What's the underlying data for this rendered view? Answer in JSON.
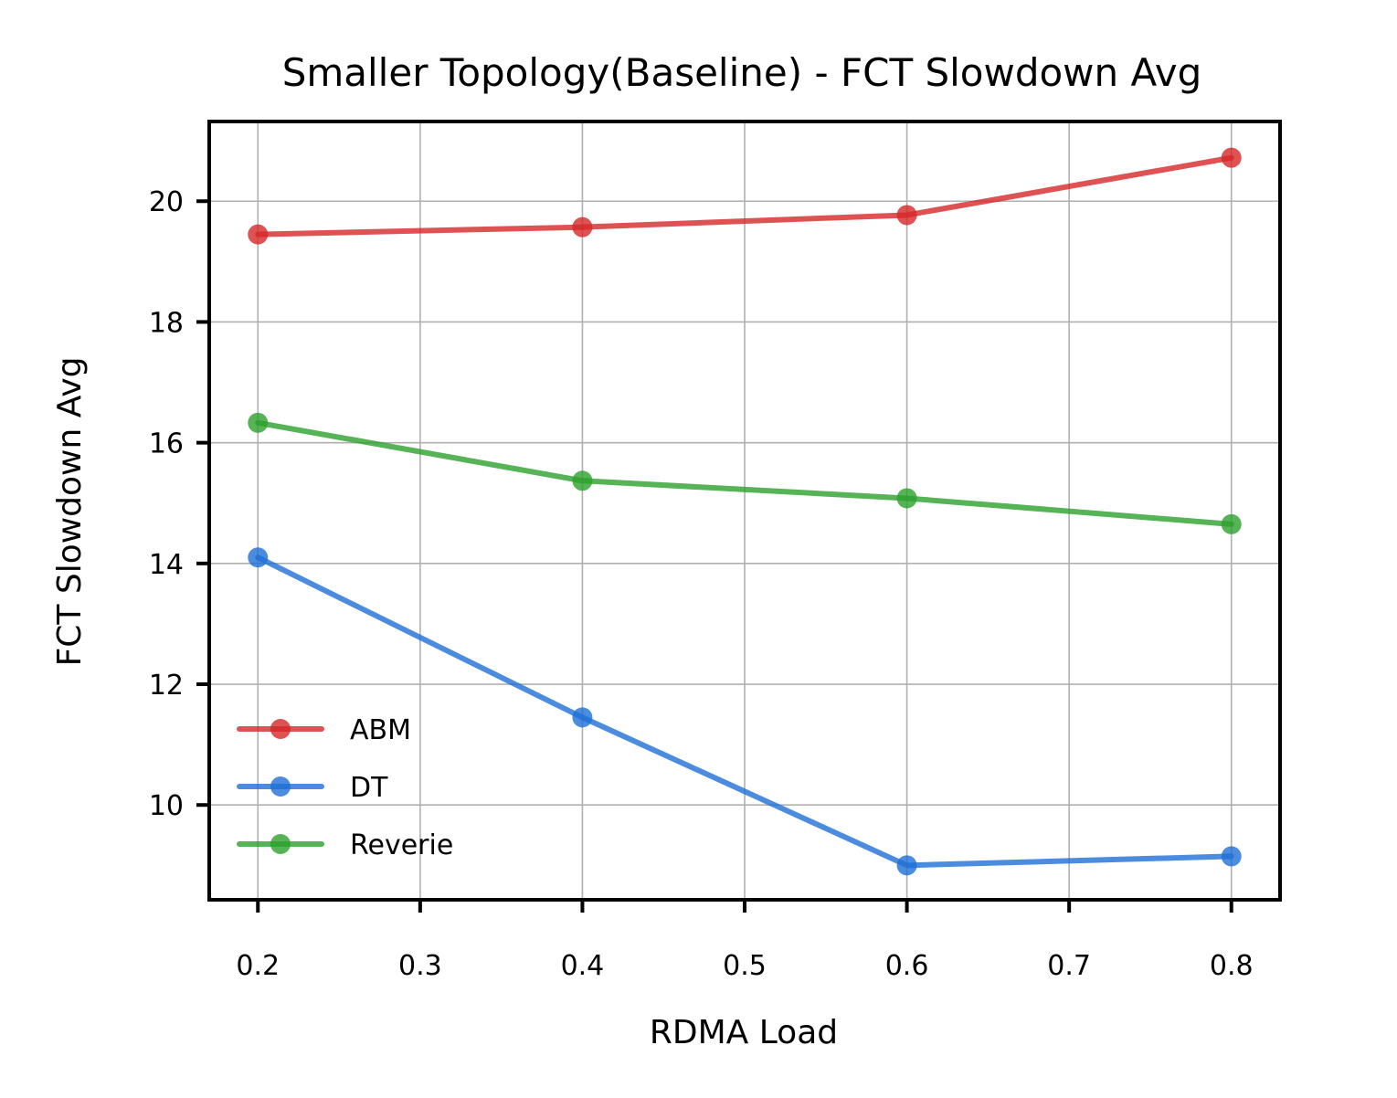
{
  "chart_data": {
    "type": "line",
    "title": "Smaller Topology(Baseline) - FCT Slowdown Avg",
    "xlabel": "RDMA Load",
    "ylabel": "FCT Slowdown Avg",
    "x": [
      0.2,
      0.4,
      0.6,
      0.8
    ],
    "xlim": [
      0.17,
      0.83
    ],
    "ylim": [
      8.43,
      21.32
    ],
    "xticks": [
      0.2,
      0.3,
      0.4,
      0.5,
      0.6,
      0.7,
      0.8
    ],
    "xtick_labels": [
      "0.2",
      "0.3",
      "0.4",
      "0.5",
      "0.6",
      "0.7",
      "0.8"
    ],
    "yticks": [
      10,
      12,
      14,
      16,
      18,
      20
    ],
    "ytick_labels": [
      "10",
      "12",
      "14",
      "16",
      "18",
      "20"
    ],
    "grid": true,
    "legend_position": "lower-left",
    "series": [
      {
        "name": "ABM",
        "color": "#d62728",
        "values": [
          19.45,
          19.57,
          19.77,
          20.72
        ]
      },
      {
        "name": "DT",
        "color": "#1f6fd6",
        "values": [
          14.1,
          11.45,
          9.0,
          9.15
        ]
      },
      {
        "name": "Reverie",
        "color": "#2ca02c",
        "values": [
          16.33,
          15.37,
          15.08,
          14.65
        ]
      }
    ]
  }
}
